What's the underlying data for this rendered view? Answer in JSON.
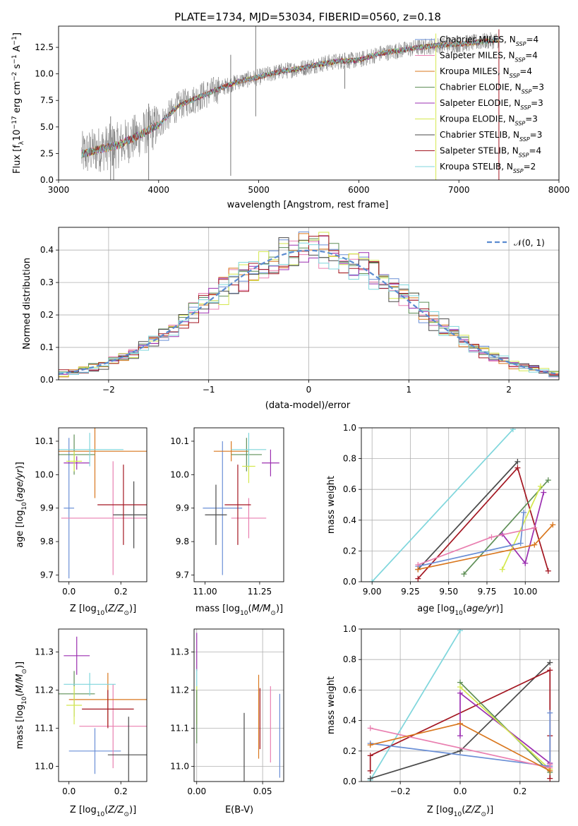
{
  "palette": {
    "chabrier_miles": "#6a8fd6",
    "salpeter_miles": "#e97fb0",
    "kroupa_miles": "#d9771e",
    "chabrier_elodie": "#5f8f57",
    "salpeter_elodie": "#9b2fb0",
    "kroupa_elodie": "#d4e84e",
    "chabrier_stelib": "#4a4a4a",
    "salpeter_stelib": "#a31621",
    "kroupa_stelib": "#7fd6dc",
    "data_gray": "#7a7a7a",
    "normal_curve": "#5b8bd0",
    "grid": "#b0b0b0"
  },
  "chart_data": [
    {
      "id": "spectrum",
      "type": "line",
      "title": "PLATE=1734, MJD=53034, FIBERID=0560, z=0.18",
      "xlabel": "wavelength [Angstrom, rest frame]",
      "ylabel": "Flux [f",
      "ylabel_parts": [
        "Flux [f",
        "λ",
        "10",
        "−17",
        " erg cm",
        "−2",
        " s",
        "−1",
        " A",
        "−1",
        "]"
      ],
      "xlim": [
        3000,
        8000
      ],
      "ylim": [
        0,
        14.5
      ],
      "xticks": [
        3000,
        4000,
        5000,
        6000,
        7000,
        8000
      ],
      "yticks": [
        0.0,
        2.5,
        5.0,
        7.5,
        10.0,
        12.5
      ],
      "ytick_labels": [
        "0.0",
        "2.5",
        "5.0",
        "7.5",
        "10.0",
        "12.5"
      ],
      "grid": false,
      "legend_position": "upper right",
      "x_range_observed": [
        3230,
        7400
      ],
      "continuum": {
        "x": [
          3230,
          3400,
          3600,
          3800,
          4000,
          4200,
          4400,
          4600,
          4800,
          5000,
          5200,
          5400,
          5600,
          5800,
          6000,
          6200,
          6400,
          6600,
          6800,
          7000,
          7200,
          7400
        ],
        "y": [
          2.4,
          2.9,
          3.3,
          4.2,
          5.2,
          7.0,
          7.8,
          8.6,
          9.3,
          9.7,
          10.2,
          10.5,
          10.9,
          11.2,
          11.3,
          11.9,
          12.2,
          12.5,
          12.7,
          12.8,
          13.0,
          13.2
        ]
      },
      "spikes": [
        {
          "x": 3520,
          "y": [
            0.0,
            6.0
          ]
        },
        {
          "x": 3550,
          "y": [
            0.0,
            4.8
          ]
        },
        {
          "x": 3900,
          "y": [
            0.0,
            7.2
          ]
        },
        {
          "x": 4720,
          "y": [
            0.4,
            11.8
          ]
        },
        {
          "x": 4970,
          "y": [
            6.0,
            14.5
          ]
        },
        {
          "x": 5860,
          "y": [
            8.6,
            12.0
          ]
        },
        {
          "x": 6770,
          "y": [
            0.0,
            13.8
          ]
        },
        {
          "x": 7400,
          "y": [
            0.0,
            14.2
          ]
        }
      ],
      "series": [
        {
          "name": "Chabrier MILES",
          "nssp": "4",
          "color_key": "chabrier_miles"
        },
        {
          "name": "Salpeter MILES",
          "nssp": "4",
          "color_key": "salpeter_miles"
        },
        {
          "name": "Kroupa MILES",
          "nssp": "4",
          "color_key": "kroupa_miles"
        },
        {
          "name": "Chabrier ELODIE",
          "nssp": "3",
          "color_key": "chabrier_elodie"
        },
        {
          "name": "Salpeter ELODIE",
          "nssp": "3",
          "color_key": "salpeter_elodie"
        },
        {
          "name": "Kroupa ELODIE",
          "nssp": "3",
          "color_key": "kroupa_elodie"
        },
        {
          "name": "Chabrier STELIB",
          "nssp": "3",
          "color_key": "chabrier_stelib"
        },
        {
          "name": "Salpeter STELIB",
          "nssp": "4",
          "color_key": "salpeter_stelib"
        },
        {
          "name": "Kroupa STELIB",
          "nssp": "2",
          "color_key": "kroupa_stelib"
        }
      ],
      "legend_label_mid": ", N",
      "legend_label_sub": "SSP",
      "legend_label_eq": "="
    },
    {
      "id": "residuals",
      "type": "line",
      "title": "",
      "xlabel": "(data-model)/error",
      "ylabel": "Normed distribution",
      "xlim": [
        -2.5,
        2.5
      ],
      "ylim": [
        0,
        0.47
      ],
      "xticks": [
        -2,
        -1,
        0,
        1,
        2
      ],
      "xtick_labels": [
        "−2",
        "−1",
        "0",
        "1",
        "2"
      ],
      "yticks": [
        0.0,
        0.1,
        0.2,
        0.3,
        0.4
      ],
      "ytick_labels": [
        "0.0",
        "0.1",
        "0.2",
        "0.3",
        "0.4"
      ],
      "grid": true,
      "legend_position": "upper right",
      "legend_label": "𝒩(0, 1)",
      "bin_width": 0.1,
      "normal": {
        "mean": 0,
        "sigma": 1
      },
      "histogram_series": [
        {
          "color_key": "chabrier_miles"
        },
        {
          "color_key": "salpeter_miles"
        },
        {
          "color_key": "kroupa_miles"
        },
        {
          "color_key": "chabrier_elodie"
        },
        {
          "color_key": "salpeter_elodie"
        },
        {
          "color_key": "kroupa_elodie"
        },
        {
          "color_key": "chabrier_stelib"
        },
        {
          "color_key": "salpeter_stelib"
        },
        {
          "color_key": "kroupa_stelib"
        }
      ]
    },
    {
      "id": "age_vs_z",
      "type": "scatter",
      "xlabel": "Z [log",
      "xlabel_parts": [
        "Z [log",
        "10",
        "(",
        "Z/Z",
        "⊙",
        ")]"
      ],
      "ylabel_parts": [
        "age  [log",
        "10",
        "(",
        "age/yr",
        ")]"
      ],
      "xlim": [
        -0.04,
        0.3
      ],
      "ylim": [
        9.68,
        10.14
      ],
      "xticks": [
        0.0,
        0.2
      ],
      "xtick_labels": [
        "0.0",
        "0.2"
      ],
      "yticks": [
        9.7,
        9.8,
        9.9,
        10.0,
        10.1
      ],
      "ytick_labels": [
        "9.7",
        "9.8",
        "9.9",
        "10.0",
        "10.1"
      ],
      "grid": false,
      "points": [
        {
          "color_key": "chabrier_miles",
          "x": 0.0,
          "xerr": 0.02,
          "y": 9.9,
          "yerr": 0.21
        },
        {
          "color_key": "salpeter_miles",
          "x": 0.17,
          "xerr": 0.2,
          "y": 9.87,
          "yerr": 0.17
        },
        {
          "color_key": "kroupa_miles",
          "x": 0.1,
          "xerr": 0.22,
          "y": 10.07,
          "yerr": 0.14
        },
        {
          "color_key": "chabrier_elodie",
          "x": 0.02,
          "xerr": 0.08,
          "y": 10.06,
          "yerr": 0.06
        },
        {
          "color_key": "salpeter_elodie",
          "x": 0.03,
          "xerr": 0.05,
          "y": 10.035,
          "yerr": 0.02
        },
        {
          "color_key": "kroupa_elodie",
          "x": 0.02,
          "xerr": 0.03,
          "y": 10.04,
          "yerr": 0.03
        },
        {
          "color_key": "chabrier_stelib",
          "x": 0.25,
          "xerr": 0.08,
          "y": 9.88,
          "yerr": 0.1
        },
        {
          "color_key": "salpeter_stelib",
          "x": 0.21,
          "xerr": 0.1,
          "y": 9.91,
          "yerr": 0.12
        },
        {
          "color_key": "kroupa_stelib",
          "x": 0.08,
          "xerr": 0.13,
          "y": 10.075,
          "yerr": 0.05
        }
      ]
    },
    {
      "id": "age_vs_mass",
      "type": "scatter",
      "xlabel_parts": [
        "mass [log",
        "10",
        "(",
        "M/M",
        "⊙",
        ")]"
      ],
      "xlim": [
        10.95,
        11.36
      ],
      "ylim": [
        9.68,
        10.14
      ],
      "xticks": [
        11.0,
        11.25
      ],
      "xtick_labels": [
        "11.00",
        "11.25"
      ],
      "yticks": [
        9.7,
        9.8,
        9.9,
        10.0,
        10.1
      ],
      "ytick_labels": [
        "9.7",
        "9.8",
        "9.9",
        "10.0",
        "10.1"
      ],
      "grid": false,
      "points": [
        {
          "color_key": "chabrier_miles",
          "x": 11.08,
          "xerr": 0.09,
          "y": 9.9,
          "yerr": 0.2
        },
        {
          "color_key": "salpeter_miles",
          "x": 11.2,
          "xerr": 0.08,
          "y": 9.87,
          "yerr": 0.06
        },
        {
          "color_key": "kroupa_miles",
          "x": 11.12,
          "xerr": 0.08,
          "y": 10.07,
          "yerr": 0.03
        },
        {
          "color_key": "chabrier_elodie",
          "x": 11.19,
          "xerr": 0.07,
          "y": 10.06,
          "yerr": 0.05
        },
        {
          "color_key": "salpeter_elodie",
          "x": 11.3,
          "xerr": 0.04,
          "y": 10.035,
          "yerr": 0.04
        },
        {
          "color_key": "kroupa_elodie",
          "x": 11.2,
          "xerr": 0.03,
          "y": 10.025,
          "yerr": 0.05
        },
        {
          "color_key": "chabrier_stelib",
          "x": 11.05,
          "xerr": 0.05,
          "y": 9.88,
          "yerr": 0.09
        },
        {
          "color_key": "salpeter_stelib",
          "x": 11.15,
          "xerr": 0.06,
          "y": 9.91,
          "yerr": 0.12
        },
        {
          "color_key": "kroupa_stelib",
          "x": 11.2,
          "xerr": 0.08,
          "y": 10.075,
          "yerr": 0.05
        }
      ]
    },
    {
      "id": "weight_vs_age",
      "type": "line",
      "xlabel_parts": [
        "age  [log",
        "10",
        "(",
        "age/yr",
        ")]"
      ],
      "ylabel": "mass weight",
      "xlim": [
        8.93,
        10.22
      ],
      "ylim": [
        0,
        1.0
      ],
      "xticks": [
        9.0,
        9.25,
        9.5,
        9.75,
        10.0
      ],
      "xtick_labels": [
        "9.00",
        "9.25",
        "9.50",
        "9.75",
        "10.00"
      ],
      "yticks": [
        0.0,
        0.2,
        0.4,
        0.6,
        0.8,
        1.0
      ],
      "ytick_labels": [
        "0.0",
        "0.2",
        "0.4",
        "0.6",
        "0.8",
        "1.0"
      ],
      "grid": true,
      "series": [
        {
          "color_key": "kroupa_stelib",
          "x": [
            9.0,
            9.92
          ],
          "y": [
            0.0,
            0.99
          ]
        },
        {
          "color_key": "chabrier_stelib",
          "x": [
            9.3,
            9.95
          ],
          "y": [
            0.08,
            0.78
          ]
        },
        {
          "color_key": "salpeter_stelib",
          "x": [
            9.3,
            9.95,
            10.15
          ],
          "y": [
            0.02,
            0.74,
            0.07
          ]
        },
        {
          "color_key": "chabrier_elodie",
          "x": [
            9.6,
            10.15
          ],
          "y": [
            0.05,
            0.66
          ]
        },
        {
          "color_key": "salpeter_elodie",
          "x": [
            9.85,
            10.0,
            10.12
          ],
          "y": [
            0.31,
            0.12,
            0.58
          ]
        },
        {
          "color_key": "kroupa_elodie",
          "x": [
            9.85,
            10.1
          ],
          "y": [
            0.08,
            0.62
          ]
        },
        {
          "color_key": "chabrier_miles",
          "x": [
            9.3,
            9.97,
            9.99
          ],
          "y": [
            0.1,
            0.25,
            0.45
          ]
        },
        {
          "color_key": "salpeter_miles",
          "x": [
            9.3,
            9.78,
            10.06
          ],
          "y": [
            0.11,
            0.29,
            0.35
          ]
        },
        {
          "color_key": "kroupa_miles",
          "x": [
            9.3,
            10.06,
            10.18
          ],
          "y": [
            0.08,
            0.24,
            0.37
          ]
        }
      ]
    },
    {
      "id": "mass_vs_z",
      "type": "scatter",
      "xlabel_parts": [
        "Z [log",
        "10",
        "(",
        "Z/Z",
        "⊙",
        ")]"
      ],
      "ylabel_parts": [
        "mass [log",
        "10",
        "(",
        "M/M",
        "⊙",
        ")]"
      ],
      "xlim": [
        -0.04,
        0.3
      ],
      "ylim": [
        10.96,
        11.36
      ],
      "xticks": [
        0.0,
        0.2
      ],
      "xtick_labels": [
        "0.0",
        "0.2"
      ],
      "yticks": [
        11.0,
        11.1,
        11.2,
        11.3
      ],
      "ytick_labels": [
        "11.0",
        "11.1",
        "11.2",
        "11.3"
      ],
      "grid": false,
      "points": [
        {
          "color_key": "chabrier_miles",
          "x": 0.1,
          "xerr": 0.1,
          "y": 11.04,
          "yerr": 0.06
        },
        {
          "color_key": "salpeter_miles",
          "x": 0.17,
          "xerr": 0.13,
          "y": 11.105,
          "yerr": 0.11
        },
        {
          "color_key": "kroupa_miles",
          "x": 0.15,
          "xerr": 0.15,
          "y": 11.175,
          "yerr": 0.07
        },
        {
          "color_key": "chabrier_elodie",
          "x": 0.02,
          "xerr": 0.08,
          "y": 11.19,
          "yerr": 0.06
        },
        {
          "color_key": "salpeter_elodie",
          "x": 0.03,
          "xerr": 0.05,
          "y": 11.29,
          "yerr": 0.05
        },
        {
          "color_key": "kroupa_elodie",
          "x": 0.02,
          "xerr": 0.03,
          "y": 11.16,
          "yerr": 0.05
        },
        {
          "color_key": "chabrier_stelib",
          "x": 0.23,
          "xerr": 0.08,
          "y": 11.03,
          "yerr": 0.1
        },
        {
          "color_key": "salpeter_stelib",
          "x": 0.15,
          "xerr": 0.1,
          "y": 11.15,
          "yerr": 0.05
        },
        {
          "color_key": "kroupa_stelib",
          "x": 0.08,
          "xerr": 0.1,
          "y": 11.215,
          "yerr": 0.03
        }
      ]
    },
    {
      "id": "mass_vs_ebv",
      "type": "scatter",
      "xlabel": "E(B-V)",
      "xlim": [
        -0.002,
        0.066
      ],
      "ylim": [
        10.96,
        11.36
      ],
      "xticks": [
        0.0,
        0.05
      ],
      "xtick_labels": [
        "0.00",
        "0.05"
      ],
      "yticks": [
        11.0,
        11.1,
        11.2,
        11.3
      ],
      "ytick_labels": [
        "11.0",
        "11.1",
        "11.2",
        "11.3"
      ],
      "grid": true,
      "points": [
        {
          "color_key": "salpeter_elodie",
          "x": 0.0,
          "y": 11.3,
          "yerr": 0.05
        },
        {
          "color_key": "kroupa_stelib",
          "x": 0.0,
          "y": 11.215,
          "yerr": 0.04
        },
        {
          "color_key": "kroupa_elodie",
          "x": 0.0,
          "y": 11.16,
          "yerr": 0.05
        },
        {
          "color_key": "chabrier_elodie",
          "x": 0.0,
          "y": 11.13,
          "yerr": 0.07
        },
        {
          "color_key": "chabrier_stelib",
          "x": 0.036,
          "y": 11.05,
          "yerr": 0.09
        },
        {
          "color_key": "kroupa_miles",
          "x": 0.047,
          "y": 11.13,
          "yerr": 0.11
        },
        {
          "color_key": "salpeter_stelib",
          "x": 0.048,
          "y": 11.125,
          "yerr": 0.08
        },
        {
          "color_key": "salpeter_miles",
          "x": 0.056,
          "y": 11.11,
          "yerr": 0.1
        },
        {
          "color_key": "chabrier_miles",
          "x": 0.063,
          "y": 11.08,
          "yerr": 0.11
        }
      ]
    },
    {
      "id": "weight_vs_z",
      "type": "line",
      "xlabel_parts": [
        "Z [log",
        "10",
        "(",
        "Z/Z",
        "⊙",
        ")]"
      ],
      "ylabel": "mass weight",
      "xlim": [
        -0.33,
        0.33
      ],
      "ylim": [
        0,
        1.0
      ],
      "xticks": [
        -0.2,
        0.0,
        0.2
      ],
      "xtick_labels": [
        "−0.2",
        "0.0",
        "0.2"
      ],
      "yticks": [
        0.0,
        0.2,
        0.4,
        0.6,
        0.8,
        1.0
      ],
      "ytick_labels": [
        "0.0",
        "0.2",
        "0.4",
        "0.6",
        "0.8",
        "1.0"
      ],
      "grid": true,
      "series": [
        {
          "color_key": "kroupa_stelib",
          "x": [
            -0.3,
            0.0
          ],
          "y": [
            0.01,
            0.99
          ]
        },
        {
          "color_key": "chabrier_stelib",
          "x": [
            -0.3,
            0.0,
            0.3
          ],
          "y": [
            0.02,
            0.2,
            0.78
          ]
        },
        {
          "color_key": "salpeter_stelib",
          "x": [
            -0.3,
            -0.3,
            0.3,
            0.3,
            0.3
          ],
          "y": [
            0.07,
            0.17,
            0.73,
            0.02,
            0.3
          ]
        },
        {
          "color_key": "chabrier_elodie",
          "x": [
            0.0,
            0.3
          ],
          "y": [
            0.65,
            0.06
          ]
        },
        {
          "color_key": "salpeter_elodie",
          "x": [
            0.0,
            0.0,
            0.3
          ],
          "y": [
            0.3,
            0.58,
            0.12
          ]
        },
        {
          "color_key": "kroupa_elodie",
          "x": [
            0.0,
            0.3
          ],
          "y": [
            0.62,
            0.08
          ]
        },
        {
          "color_key": "chabrier_miles",
          "x": [
            -0.3,
            0.3,
            0.3
          ],
          "y": [
            0.25,
            0.1,
            0.45
          ]
        },
        {
          "color_key": "salpeter_miles",
          "x": [
            -0.3,
            0.3,
            0.3
          ],
          "y": [
            0.35,
            0.09,
            0.11
          ]
        },
        {
          "color_key": "kroupa_miles",
          "x": [
            -0.3,
            0.0,
            0.3
          ],
          "y": [
            0.24,
            0.38,
            0.07
          ]
        }
      ]
    }
  ]
}
